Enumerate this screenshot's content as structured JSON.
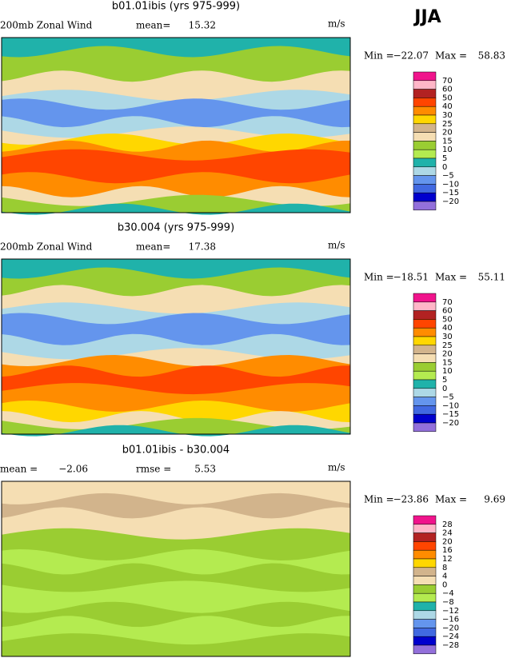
{
  "header": {
    "season": "JJA"
  },
  "panels": [
    {
      "title": "b01.01ibis (yrs 975-999)",
      "variable": "200mb Zonal Wind",
      "stat_label": "mean=",
      "stat_value": "15.32",
      "units": "m/s",
      "min_label": "Min =",
      "min": "−22.07",
      "max_label": "Max =",
      "max": "58.83",
      "colorbar": {
        "labels": [
          "70",
          "60",
          "50",
          "40",
          "30",
          "25",
          "20",
          "15",
          "10",
          "5",
          "0",
          "−5",
          "−10",
          "−15",
          "−20"
        ],
        "colors": [
          "#f0148c",
          "#ffb6c8",
          "#b22222",
          "#ff4500",
          "#ff8c00",
          "#ffd700",
          "#d2b48c",
          "#f5deb3",
          "#9acd32",
          "#b4eb50",
          "#20b2aa",
          "#add8e6",
          "#6495ed",
          "#4169e1",
          "#0000cd",
          "#9370db"
        ]
      }
    },
    {
      "title": "b30.004 (yrs 975-999)",
      "variable": "200mb Zonal Wind",
      "stat_label": "mean=",
      "stat_value": "17.38",
      "units": "m/s",
      "min_label": "Min =",
      "min": "−18.51",
      "max_label": "Max =",
      "max": "55.11",
      "colorbar": {
        "labels": [
          "70",
          "60",
          "50",
          "40",
          "30",
          "25",
          "20",
          "15",
          "10",
          "5",
          "0",
          "−5",
          "−10",
          "−15",
          "−20"
        ],
        "colors": [
          "#f0148c",
          "#ffb6c8",
          "#b22222",
          "#ff4500",
          "#ff8c00",
          "#ffd700",
          "#d2b48c",
          "#f5deb3",
          "#9acd32",
          "#b4eb50",
          "#20b2aa",
          "#add8e6",
          "#6495ed",
          "#4169e1",
          "#0000cd",
          "#9370db"
        ]
      }
    },
    {
      "title": "b01.01ibis - b30.004",
      "stat_label": "mean =",
      "stat_value": "−2.06",
      "stat2_label": "rmse =",
      "stat2_value": "5.53",
      "units": "m/s",
      "min_label": "Min =",
      "min": "−23.86",
      "max_label": "Max =",
      "max": "9.69",
      "colorbar": {
        "labels": [
          "28",
          "24",
          "20",
          "16",
          "12",
          "8",
          "4",
          "0",
          "−4",
          "−8",
          "−12",
          "−16",
          "−20",
          "−24",
          "−28"
        ],
        "colors": [
          "#f0148c",
          "#ffb6c8",
          "#b22222",
          "#ff4500",
          "#ff8c00",
          "#ffd700",
          "#d2b48c",
          "#f5deb3",
          "#9acd32",
          "#b4eb50",
          "#20b2aa",
          "#add8e6",
          "#6495ed",
          "#4169e1",
          "#0000cd",
          "#9370db"
        ]
      }
    }
  ]
}
